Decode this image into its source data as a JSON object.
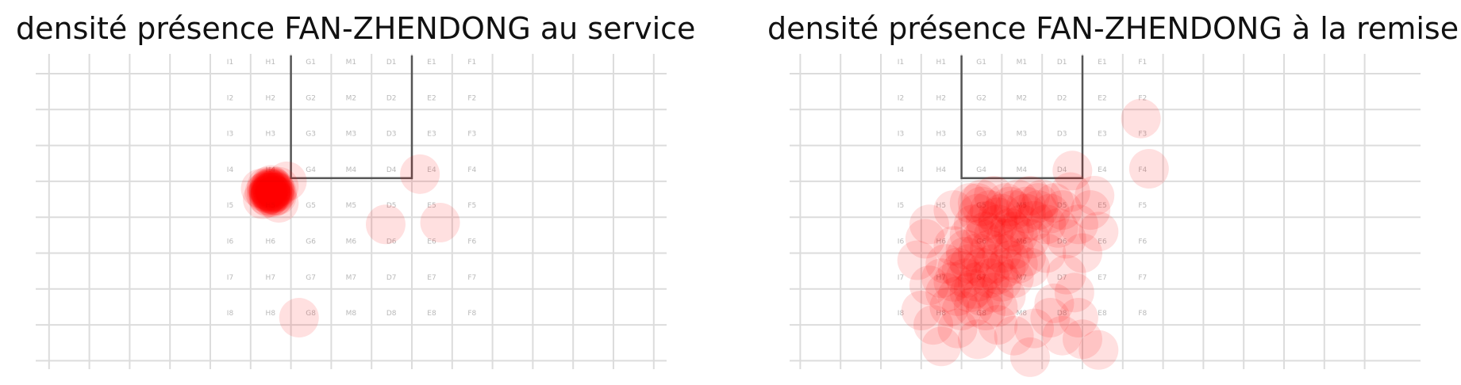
{
  "chart_data": [
    {
      "type": "scatter",
      "title": "densité présence FAN-ZHENDONG au service",
      "zone_rows": [
        [
          "I1",
          "H1",
          "G1",
          "M1",
          "D1",
          "E1",
          "F1"
        ],
        [
          "I2",
          "H2",
          "G2",
          "M2",
          "D2",
          "E2",
          "F2"
        ],
        [
          "I3",
          "H3",
          "G3",
          "M3",
          "D3",
          "E3",
          "F3"
        ],
        [
          "I4",
          "H4",
          "G4",
          "M4",
          "D4",
          "E4",
          "F4"
        ],
        [
          "I5",
          "H5",
          "G5",
          "M5",
          "D5",
          "E5",
          "F5"
        ],
        [
          "I6",
          "H6",
          "G6",
          "M6",
          "D6",
          "E6",
          "F6"
        ],
        [
          "I7",
          "H7",
          "G7",
          "M7",
          "D7",
          "E7",
          "F7"
        ],
        [
          "I8",
          "H8",
          "G8",
          "M8",
          "D8",
          "E8",
          "F8"
        ]
      ],
      "points": [
        [
          1.5,
          3.3
        ],
        [
          1.6,
          3.2
        ],
        [
          1.4,
          3.4
        ],
        [
          1.55,
          3.25
        ],
        [
          1.45,
          3.35
        ],
        [
          1.5,
          3.15
        ],
        [
          1.6,
          3.4
        ],
        [
          1.45,
          3.2
        ],
        [
          1.55,
          3.45
        ],
        [
          1.5,
          3.3
        ],
        [
          1.4,
          3.25
        ],
        [
          1.65,
          3.3
        ],
        [
          1.5,
          3.35
        ],
        [
          1.55,
          3.2
        ],
        [
          1.45,
          3.3
        ],
        [
          1.6,
          3.25
        ],
        [
          1.5,
          3.4
        ],
        [
          1.35,
          3.3
        ],
        [
          1.7,
          3.15
        ],
        [
          1.55,
          3.35
        ],
        [
          1.5,
          3.1
        ],
        [
          1.45,
          3.45
        ],
        [
          1.6,
          3.3
        ],
        [
          1.5,
          3.25
        ],
        [
          1.4,
          3.15
        ],
        [
          1.55,
          3.3
        ],
        [
          1.5,
          3.3
        ],
        [
          1.65,
          3.4
        ],
        [
          1.45,
          3.25
        ],
        [
          1.5,
          3.35
        ],
        [
          1.55,
          3.15
        ],
        [
          1.5,
          3.2
        ],
        [
          1.9,
          3.0
        ],
        [
          1.3,
          3.5
        ],
        [
          1.7,
          3.6
        ],
        [
          1.25,
          3.2
        ],
        [
          5.2,
          2.8
        ],
        [
          4.35,
          4.2
        ],
        [
          5.7,
          4.15
        ],
        [
          2.2,
          6.8
        ]
      ]
    },
    {
      "type": "scatter",
      "title": "densité présence FAN-ZHENDONG à la remise",
      "zone_rows": [
        [
          "I1",
          "H1",
          "G1",
          "M1",
          "D1",
          "E1",
          "F1"
        ],
        [
          "I2",
          "H2",
          "G2",
          "M2",
          "D2",
          "E2",
          "F2"
        ],
        [
          "I3",
          "H3",
          "G3",
          "M3",
          "D3",
          "E3",
          "F3"
        ],
        [
          "I4",
          "H4",
          "G4",
          "M4",
          "D4",
          "E4",
          "F4"
        ],
        [
          "I5",
          "H5",
          "G5",
          "M5",
          "D5",
          "E5",
          "F5"
        ],
        [
          "I6",
          "H6",
          "G6",
          "M6",
          "D6",
          "E6",
          "F6"
        ],
        [
          "I7",
          "H7",
          "G7",
          "M7",
          "D7",
          "E7",
          "F7"
        ],
        [
          "I8",
          "H8",
          "G8",
          "M8",
          "D8",
          "E8",
          "F8"
        ]
      ],
      "points": [
        [
          2.2,
          3.6
        ],
        [
          2.5,
          3.5
        ],
        [
          2.8,
          3.4
        ],
        [
          3.1,
          3.6
        ],
        [
          3.4,
          3.5
        ],
        [
          3.7,
          3.4
        ],
        [
          4.0,
          3.5
        ],
        [
          4.3,
          3.6
        ],
        [
          2.4,
          3.9
        ],
        [
          2.7,
          3.8
        ],
        [
          3.0,
          3.9
        ],
        [
          3.3,
          3.8
        ],
        [
          3.6,
          3.9
        ],
        [
          3.9,
          3.8
        ],
        [
          4.2,
          3.9
        ],
        [
          4.5,
          3.8
        ],
        [
          2.3,
          4.2
        ],
        [
          2.6,
          4.1
        ],
        [
          2.9,
          4.2
        ],
        [
          3.2,
          4.3
        ],
        [
          3.5,
          4.2
        ],
        [
          3.8,
          4.1
        ],
        [
          4.1,
          4.2
        ],
        [
          4.4,
          4.3
        ],
        [
          2.2,
          4.5
        ],
        [
          2.5,
          4.6
        ],
        [
          2.8,
          4.5
        ],
        [
          3.1,
          4.6
        ],
        [
          3.4,
          4.5
        ],
        [
          3.7,
          4.6
        ],
        [
          1.8,
          4.8
        ],
        [
          2.1,
          4.9
        ],
        [
          2.4,
          5.0
        ],
        [
          2.7,
          4.9
        ],
        [
          3.0,
          5.0
        ],
        [
          3.3,
          4.9
        ],
        [
          3.6,
          5.1
        ],
        [
          1.6,
          5.3
        ],
        [
          1.9,
          5.4
        ],
        [
          2.2,
          5.3
        ],
        [
          2.5,
          5.4
        ],
        [
          2.8,
          5.3
        ],
        [
          3.1,
          5.4
        ],
        [
          3.4,
          5.3
        ],
        [
          3.7,
          5.4
        ],
        [
          1.5,
          5.7
        ],
        [
          1.8,
          5.8
        ],
        [
          2.1,
          5.7
        ],
        [
          2.4,
          5.8
        ],
        [
          2.7,
          5.7
        ],
        [
          3.0,
          5.8
        ],
        [
          3.3,
          5.7
        ],
        [
          1.6,
          6.1
        ],
        [
          1.9,
          6.2
        ],
        [
          2.2,
          6.1
        ],
        [
          2.5,
          6.2
        ],
        [
          2.8,
          6.1
        ],
        [
          3.1,
          6.2
        ],
        [
          1.7,
          6.5
        ],
        [
          2.0,
          6.6
        ],
        [
          2.3,
          6.5
        ],
        [
          2.6,
          6.6
        ],
        [
          2.9,
          6.5
        ],
        [
          2.5,
          3.7
        ],
        [
          3.2,
          3.7
        ],
        [
          3.9,
          3.6
        ],
        [
          2.6,
          4.4
        ],
        [
          3.3,
          4.4
        ],
        [
          2.0,
          5.5
        ],
        [
          2.6,
          5.5
        ],
        [
          3.2,
          5.2
        ],
        [
          2.4,
          3.6
        ],
        [
          3.6,
          3.7
        ],
        [
          2.9,
          4.0
        ],
        [
          2.1,
          5.1
        ],
        [
          2.9,
          5.6
        ],
        [
          2.3,
          6.0
        ],
        [
          1.8,
          3.8
        ],
        [
          1.2,
          4.2
        ],
        [
          1.1,
          4.6
        ],
        [
          0.9,
          5.2
        ],
        [
          1.2,
          5.9
        ],
        [
          1.0,
          6.6
        ],
        [
          1.3,
          7.0
        ],
        [
          1.9,
          7.1
        ],
        [
          2.4,
          7.4
        ],
        [
          2.9,
          7.0
        ],
        [
          3.3,
          7.3
        ],
        [
          3.8,
          7.1
        ],
        [
          4.2,
          6.8
        ],
        [
          4.5,
          7.3
        ],
        [
          4.3,
          6.4
        ],
        [
          4.8,
          6.1
        ],
        [
          4.6,
          5.6
        ],
        [
          5.0,
          7.4
        ],
        [
          5.4,
          7.7
        ],
        [
          3.7,
          7.9
        ],
        [
          1.5,
          7.6
        ],
        [
          4.9,
          6.8
        ],
        [
          5.0,
          5.0
        ],
        [
          4.6,
          4.6
        ],
        [
          4.9,
          4.2
        ],
        [
          5.2,
          3.8
        ],
        [
          4.75,
          2.7
        ],
        [
          5.3,
          3.4
        ],
        [
          5.4,
          4.4
        ],
        [
          4.7,
          3.3
        ],
        [
          6.45,
          1.25
        ],
        [
          6.65,
          2.65
        ],
        [
          4.1,
          5.0
        ]
      ]
    }
  ]
}
